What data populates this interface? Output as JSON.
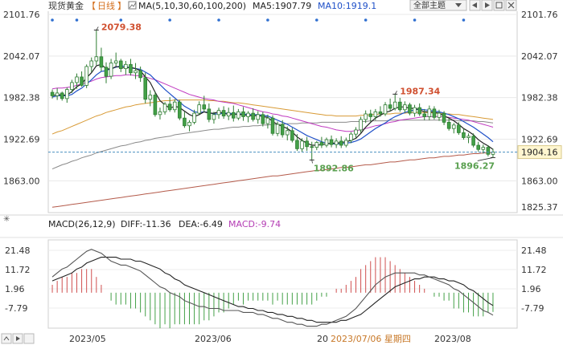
{
  "header": {
    "title": "现货黄金",
    "period": "日线",
    "ma_label": "MA(5,10,30,60,100,200)",
    "ma5": "MA5:1907.79",
    "ma10": "MA10:1919.1",
    "theme_button": "全部主题"
  },
  "macd_header": {
    "label": "MACD(26,12,9)",
    "diff": "DIFF:-11.36",
    "dea": "DEA:-6.49",
    "macd": "MACD:-9.74"
  },
  "footer": {
    "dates": [
      "2023/05",
      "2023/06",
      "20",
      "2023/08"
    ],
    "crosshair_date": "2023/07/06 星期四"
  },
  "chart_data": {
    "type": "candlestick",
    "price_axis": {
      "ticks": [
        "2101.76",
        "2042.07",
        "1982.38",
        "1922.69",
        "1863.00"
      ],
      "tick_values": [
        2101.76,
        2042.07,
        1982.38,
        1922.69,
        1863.0
      ],
      "current_price": "1904.16",
      "bottom_label": "1825.37",
      "ylim": [
        1825.37,
        2101.76
      ]
    },
    "annotations": {
      "high1": "2079.38",
      "low1": "1892.86",
      "high2": "1987.34",
      "low2": "1896.27"
    },
    "candles": [
      [
        1990.0,
        1994.0,
        1981.0,
        1985.0
      ],
      [
        1985.0,
        1996.0,
        1979.0,
        1989.0
      ],
      [
        1989.0,
        1991.0,
        1978.0,
        1981.0
      ],
      [
        1981.0,
        1997.0,
        1975.0,
        1994.0
      ],
      [
        1994.0,
        2008.0,
        1989.0,
        2004.0
      ],
      [
        2004.0,
        2017.0,
        1995.0,
        2012.0
      ],
      [
        2012.0,
        2020.0,
        1998.0,
        2000.0
      ],
      [
        2000.0,
        2030.0,
        1996.0,
        2027.0
      ],
      [
        2027.0,
        2040.0,
        2019.0,
        2035.0
      ],
      [
        2035.0,
        2079.38,
        2029.0,
        2041.0
      ],
      [
        2041.0,
        2054.0,
        2020.0,
        2026.0
      ],
      [
        2026.0,
        2033.0,
        2003.0,
        2013.0
      ],
      [
        2013.0,
        2038.0,
        2009.0,
        2032.0
      ],
      [
        2032.0,
        2047.0,
        2028.0,
        2035.0
      ],
      [
        2035.0,
        2038.0,
        2019.0,
        2024.0
      ],
      [
        2024.0,
        2035.0,
        2015.0,
        2030.0
      ],
      [
        2030.0,
        2038.0,
        2014.0,
        2018.0
      ],
      [
        2018.0,
        2032.0,
        2009.0,
        2021.0
      ],
      [
        2021.0,
        2027.0,
        2005.0,
        2011.0
      ],
      [
        2011.0,
        2018.0,
        1974.0,
        1980.0
      ],
      [
        1980.0,
        1993.0,
        1970.0,
        1986.0
      ],
      [
        1986.0,
        1991.0,
        1955.0,
        1958.0
      ],
      [
        1958.0,
        1968.0,
        1951.0,
        1962.0
      ],
      [
        1962.0,
        1976.0,
        1958.0,
        1973.0
      ],
      [
        1973.0,
        1983.0,
        1962.0,
        1965.0
      ],
      [
        1965.0,
        1980.0,
        1961.0,
        1976.0
      ],
      [
        1976.0,
        1979.0,
        1950.0,
        1953.0
      ],
      [
        1953.0,
        1962.0,
        1939.0,
        1942.0
      ],
      [
        1942.0,
        1950.0,
        1934.0,
        1947.0
      ],
      [
        1947.0,
        1965.0,
        1944.0,
        1960.0
      ],
      [
        1960.0,
        1977.0,
        1957.0,
        1972.0
      ],
      [
        1972.0,
        1985.0,
        1962.0,
        1966.0
      ],
      [
        1966.0,
        1974.0,
        1947.0,
        1951.0
      ],
      [
        1951.0,
        1962.0,
        1945.0,
        1958.0
      ],
      [
        1958.0,
        1968.0,
        1952.0,
        1964.0
      ],
      [
        1964.0,
        1970.0,
        1952.0,
        1956.0
      ],
      [
        1956.0,
        1968.0,
        1950.0,
        1961.0
      ],
      [
        1961.0,
        1971.0,
        1948.0,
        1953.0
      ],
      [
        1953.0,
        1966.0,
        1950.0,
        1962.0
      ],
      [
        1962.0,
        1969.0,
        1949.0,
        1955.0
      ],
      [
        1955.0,
        1963.0,
        1947.0,
        1960.0
      ],
      [
        1960.0,
        1967.0,
        1948.0,
        1951.0
      ],
      [
        1951.0,
        1963.0,
        1945.0,
        1958.0
      ],
      [
        1958.0,
        1962.0,
        1941.0,
        1945.0
      ],
      [
        1945.0,
        1958.0,
        1938.0,
        1953.0
      ],
      [
        1953.0,
        1957.0,
        1928.0,
        1931.0
      ],
      [
        1931.0,
        1948.0,
        1927.0,
        1944.0
      ],
      [
        1944.0,
        1950.0,
        1925.0,
        1929.0
      ],
      [
        1929.0,
        1941.0,
        1921.0,
        1935.0
      ],
      [
        1935.0,
        1939.0,
        1918.0,
        1921.0
      ],
      [
        1921.0,
        1930.0,
        1906.0,
        1909.0
      ],
      [
        1909.0,
        1924.0,
        1904.0,
        1920.0
      ],
      [
        1920.0,
        1926.0,
        1906.0,
        1912.0
      ],
      [
        1912.0,
        1919.0,
        1892.86,
        1911.0
      ],
      [
        1911.0,
        1920.0,
        1907.0,
        1918.0
      ],
      [
        1918.0,
        1926.0,
        1910.0,
        1914.0
      ],
      [
        1914.0,
        1925.0,
        1911.0,
        1922.0
      ],
      [
        1922.0,
        1928.0,
        1911.0,
        1915.0
      ],
      [
        1915.0,
        1924.0,
        1910.0,
        1920.0
      ],
      [
        1920.0,
        1927.0,
        1910.0,
        1914.0
      ],
      [
        1914.0,
        1925.0,
        1911.0,
        1921.0
      ],
      [
        1921.0,
        1933.0,
        1917.0,
        1930.0
      ],
      [
        1930.0,
        1940.0,
        1925.0,
        1936.0
      ],
      [
        1936.0,
        1955.0,
        1932.0,
        1951.0
      ],
      [
        1951.0,
        1964.0,
        1946.0,
        1959.0
      ],
      [
        1959.0,
        1965.0,
        1948.0,
        1955.0
      ],
      [
        1955.0,
        1966.0,
        1950.0,
        1962.0
      ],
      [
        1962.0,
        1970.0,
        1955.0,
        1959.0
      ],
      [
        1959.0,
        1976.0,
        1956.0,
        1972.0
      ],
      [
        1972.0,
        1981.0,
        1963.0,
        1967.0
      ],
      [
        1967.0,
        1987.34,
        1964.0,
        1976.0
      ],
      [
        1976.0,
        1982.0,
        1962.0,
        1965.0
      ],
      [
        1965.0,
        1977.0,
        1961.0,
        1972.0
      ],
      [
        1972.0,
        1975.0,
        1957.0,
        1960.0
      ],
      [
        1960.0,
        1972.0,
        1955.0,
        1968.0
      ],
      [
        1968.0,
        1974.0,
        1956.0,
        1959.0
      ],
      [
        1959.0,
        1966.0,
        1950.0,
        1955.0
      ],
      [
        1955.0,
        1971.0,
        1950.0,
        1966.0
      ],
      [
        1966.0,
        1970.0,
        1951.0,
        1954.0
      ],
      [
        1954.0,
        1965.0,
        1949.0,
        1960.0
      ],
      [
        1960.0,
        1963.0,
        1943.0,
        1947.0
      ],
      [
        1947.0,
        1953.0,
        1935.0,
        1938.0
      ],
      [
        1938.0,
        1946.0,
        1931.0,
        1943.0
      ],
      [
        1943.0,
        1947.0,
        1929.0,
        1932.0
      ],
      [
        1932.0,
        1938.0,
        1922.0,
        1925.0
      ],
      [
        1925.0,
        1931.0,
        1917.0,
        1927.0
      ],
      [
        1927.0,
        1931.0,
        1911.0,
        1914.0
      ],
      [
        1914.0,
        1919.0,
        1905.0,
        1908.0
      ],
      [
        1908.0,
        1915.0,
        1902.0,
        1911.0
      ],
      [
        1911.0,
        1914.0,
        1898.0,
        1901.0
      ],
      [
        1901.0,
        1909.0,
        1896.27,
        1904.16
      ]
    ],
    "ma5": [
      1985,
      1987,
      1986,
      1986,
      1991,
      1998,
      2002,
      2011,
      2018,
      2028,
      2030,
      2024,
      2023,
      2027,
      2026,
      2025,
      2026,
      2024,
      2021,
      2012,
      2004,
      1990,
      1978,
      1972,
      1967,
      1970,
      1968,
      1963,
      1958,
      1955,
      1958,
      1962,
      1960,
      1960,
      1962,
      1960,
      1958,
      1958,
      1959,
      1957,
      1957,
      1956,
      1957,
      1955,
      1954,
      1948,
      1944,
      1941,
      1938,
      1933,
      1926,
      1921,
      1917,
      1914,
      1914,
      1915,
      1916,
      1917,
      1917,
      1918,
      1919,
      1921,
      1924,
      1931,
      1940,
      1947,
      1953,
      1957,
      1961,
      1963,
      1967,
      1969,
      1969,
      1967,
      1967,
      1965,
      1962,
      1962,
      1961,
      1960,
      1956,
      1953,
      1949,
      1944,
      1938,
      1934,
      1929,
      1922,
      1917,
      1913,
      1908
    ],
    "ma10": [
      1983,
      1985,
      1985,
      1985,
      1987,
      1992,
      1996,
      2002,
      2008,
      2015,
      2020,
      2021,
      2024,
      2026,
      2028,
      2027,
      2025,
      2024,
      2023,
      2019,
      2015,
      2008,
      2001,
      1994,
      1988,
      1982,
      1976,
      1970,
      1966,
      1962,
      1961,
      1962,
      1961,
      1959,
      1959,
      1960,
      1960,
      1959,
      1959,
      1959,
      1958,
      1958,
      1958,
      1957,
      1956,
      1953,
      1950,
      1947,
      1944,
      1940,
      1936,
      1932,
      1928,
      1925,
      1922,
      1919,
      1917,
      1916,
      1916,
      1916,
      1917,
      1918,
      1920,
      1923,
      1928,
      1933,
      1938,
      1942,
      1946,
      1951,
      1955,
      1958,
      1961,
      1963,
      1965,
      1966,
      1965,
      1964,
      1963,
      1962,
      1960,
      1958,
      1955,
      1952,
      1948,
      1944,
      1940,
      1935,
      1930,
      1925,
      1919
    ],
    "ma30": [
      1995,
      1996,
      1996,
      1997,
      1998,
      2000,
      2002,
      2004,
      2006,
      2009,
      2011,
      2012,
      2013,
      2014,
      2014,
      2015,
      2015,
      2014,
      2014,
      2012,
      2010,
      2008,
      2005,
      2002,
      1999,
      1996,
      1993,
      1990,
      1987,
      1985,
      1983,
      1981,
      1980,
      1979,
      1977,
      1976,
      1975,
      1974,
      1972,
      1970,
      1968,
      1966,
      1964,
      1962,
      1961,
      1959,
      1958,
      1956,
      1955,
      1953,
      1951,
      1949,
      1947,
      1945,
      1943,
      1941,
      1940,
      1938,
      1936,
      1935,
      1934,
      1934,
      1935,
      1936,
      1938,
      1940,
      1942,
      1943,
      1945,
      1947,
      1948,
      1950,
      1951,
      1952,
      1953,
      1954,
      1955,
      1955,
      1955,
      1955,
      1955,
      1954,
      1953,
      1952,
      1951,
      1950,
      1948,
      1946,
      1944,
      1942,
      1940
    ],
    "ma60": [
      1930,
      1933,
      1935,
      1938,
      1941,
      1944,
      1947,
      1950,
      1953,
      1956,
      1958,
      1961,
      1963,
      1965,
      1967,
      1969,
      1970,
      1972,
      1973,
      1974,
      1975,
      1976,
      1977,
      1978,
      1978,
      1979,
      1979,
      1979,
      1979,
      1979,
      1979,
      1979,
      1978,
      1978,
      1977,
      1977,
      1976,
      1975,
      1975,
      1974,
      1973,
      1972,
      1971,
      1970,
      1969,
      1968,
      1967,
      1966,
      1965,
      1964,
      1963,
      1962,
      1961,
      1960,
      1959,
      1958,
      1957,
      1957,
      1956,
      1956,
      1956,
      1956,
      1956,
      1957,
      1957,
      1958,
      1958,
      1959,
      1959,
      1959,
      1960,
      1960,
      1960,
      1961,
      1961,
      1961,
      1961,
      1961,
      1960,
      1960,
      1959,
      1959,
      1958,
      1958,
      1957,
      1956,
      1955,
      1954,
      1953,
      1952,
      1951
    ],
    "ma100": [
      1880,
      1883,
      1886,
      1888,
      1891,
      1893,
      1896,
      1898,
      1900,
      1903,
      1905,
      1907,
      1909,
      1911,
      1913,
      1914,
      1916,
      1918,
      1919,
      1921,
      1922,
      1924,
      1925,
      1926,
      1927,
      1929,
      1930,
      1931,
      1932,
      1933,
      1934,
      1935,
      1936,
      1937,
      1937,
      1938,
      1939,
      1940,
      1940,
      1941,
      1941,
      1942,
      1942,
      1943,
      1943,
      1944,
      1944,
      1944,
      1945,
      1945,
      1945,
      1946,
      1946,
      1946,
      1946,
      1947,
      1947,
      1947,
      1947,
      1947,
      1947,
      1948,
      1948,
      1948,
      1948,
      1949,
      1949,
      1949,
      1949,
      1950,
      1950,
      1950,
      1950,
      1950,
      1950,
      1950,
      1950,
      1950,
      1950,
      1950,
      1950,
      1950,
      1950,
      1949,
      1949,
      1949,
      1949,
      1948,
      1948,
      1947,
      1946
    ],
    "ma200": [
      1825,
      1826,
      1827,
      1828,
      1829,
      1830,
      1831,
      1832,
      1833,
      1834,
      1835,
      1836,
      1837,
      1838,
      1839,
      1840,
      1841,
      1842,
      1843,
      1844,
      1845,
      1846,
      1847,
      1848,
      1849,
      1850,
      1851,
      1852,
      1853,
      1854,
      1855,
      1856,
      1857,
      1858,
      1859,
      1860,
      1861,
      1862,
      1863,
      1864,
      1865,
      1866,
      1867,
      1868,
      1869,
      1870,
      1870,
      1871,
      1872,
      1873,
      1874,
      1875,
      1876,
      1877,
      1878,
      1878,
      1879,
      1880,
      1881,
      1882,
      1882,
      1883,
      1884,
      1885,
      1886,
      1886,
      1887,
      1888,
      1889,
      1890,
      1890,
      1891,
      1892,
      1893,
      1893,
      1894,
      1895,
      1896,
      1896,
      1897,
      1898,
      1898,
      1899,
      1900,
      1900,
      1901,
      1902,
      1902,
      1903,
      1903,
      1904
    ],
    "macd": {
      "ticks": [
        "21.48",
        "11.72",
        "1.96",
        "-7.79"
      ],
      "tick_values": [
        21.48,
        11.72,
        1.96,
        -7.79
      ],
      "ylim": [
        -17.55,
        26.36
      ],
      "diff": [
        8,
        10,
        12,
        13,
        15,
        17,
        19,
        21,
        22,
        21,
        20,
        18,
        16,
        15,
        14,
        14,
        13,
        12,
        11,
        9,
        7,
        5,
        3,
        2,
        0,
        -1,
        -2,
        -4,
        -5,
        -6,
        -7,
        -7,
        -8,
        -8,
        -8,
        -9,
        -9,
        -9,
        -9,
        -10,
        -10,
        -10,
        -11,
        -11,
        -12,
        -13,
        -13,
        -14,
        -15,
        -15,
        -16,
        -16,
        -17,
        -17,
        -17,
        -16,
        -16,
        -15,
        -14,
        -13,
        -12,
        -10,
        -8,
        -5,
        -2,
        1,
        4,
        6,
        8,
        9,
        10,
        10,
        10,
        10,
        10,
        9,
        9,
        8,
        7,
        6,
        5,
        4,
        2,
        1,
        -1,
        -3,
        -5,
        -7,
        -9,
        -10,
        -11.36
      ],
      "dea": [
        6,
        7,
        8,
        9,
        10,
        12,
        13,
        15,
        16,
        17,
        18,
        18,
        18,
        18,
        17,
        17,
        17,
        16,
        16,
        15,
        14,
        13,
        12,
        10,
        9,
        7,
        6,
        4,
        3,
        2,
        1,
        0,
        -1,
        -2,
        -3,
        -4,
        -5,
        -6,
        -7,
        -7,
        -8,
        -8,
        -9,
        -9,
        -10,
        -10,
        -11,
        -11,
        -12,
        -12,
        -13,
        -13,
        -14,
        -14,
        -15,
        -15,
        -15,
        -15,
        -15,
        -14,
        -14,
        -13,
        -12,
        -11,
        -9,
        -7,
        -5,
        -3,
        -1,
        1,
        3,
        4,
        5,
        6,
        7,
        7,
        8,
        8,
        8,
        7,
        7,
        6,
        6,
        5,
        4,
        2,
        1,
        -1,
        -3,
        -5,
        -6.49
      ],
      "hist": [
        4,
        6,
        8,
        8,
        10,
        10,
        12,
        12,
        12,
        8,
        4,
        0,
        -4,
        -6,
        -6,
        -6,
        -8,
        -8,
        -10,
        -12,
        -14,
        -16,
        -18,
        -16,
        -18,
        -16,
        -16,
        -16,
        -16,
        -16,
        -16,
        -14,
        -14,
        -12,
        -10,
        -10,
        -8,
        -6,
        -4,
        -6,
        -4,
        -4,
        -4,
        -4,
        -4,
        -6,
        -4,
        -6,
        -6,
        -6,
        -6,
        -6,
        -6,
        -6,
        -4,
        -2,
        -2,
        0,
        2,
        2,
        4,
        6,
        8,
        12,
        14,
        16,
        18,
        18,
        18,
        16,
        14,
        12,
        10,
        8,
        6,
        4,
        2,
        0,
        -2,
        -2,
        -4,
        -4,
        -8,
        -8,
        -10,
        -10,
        -12,
        -12,
        -12,
        -10,
        -9.74
      ]
    }
  }
}
